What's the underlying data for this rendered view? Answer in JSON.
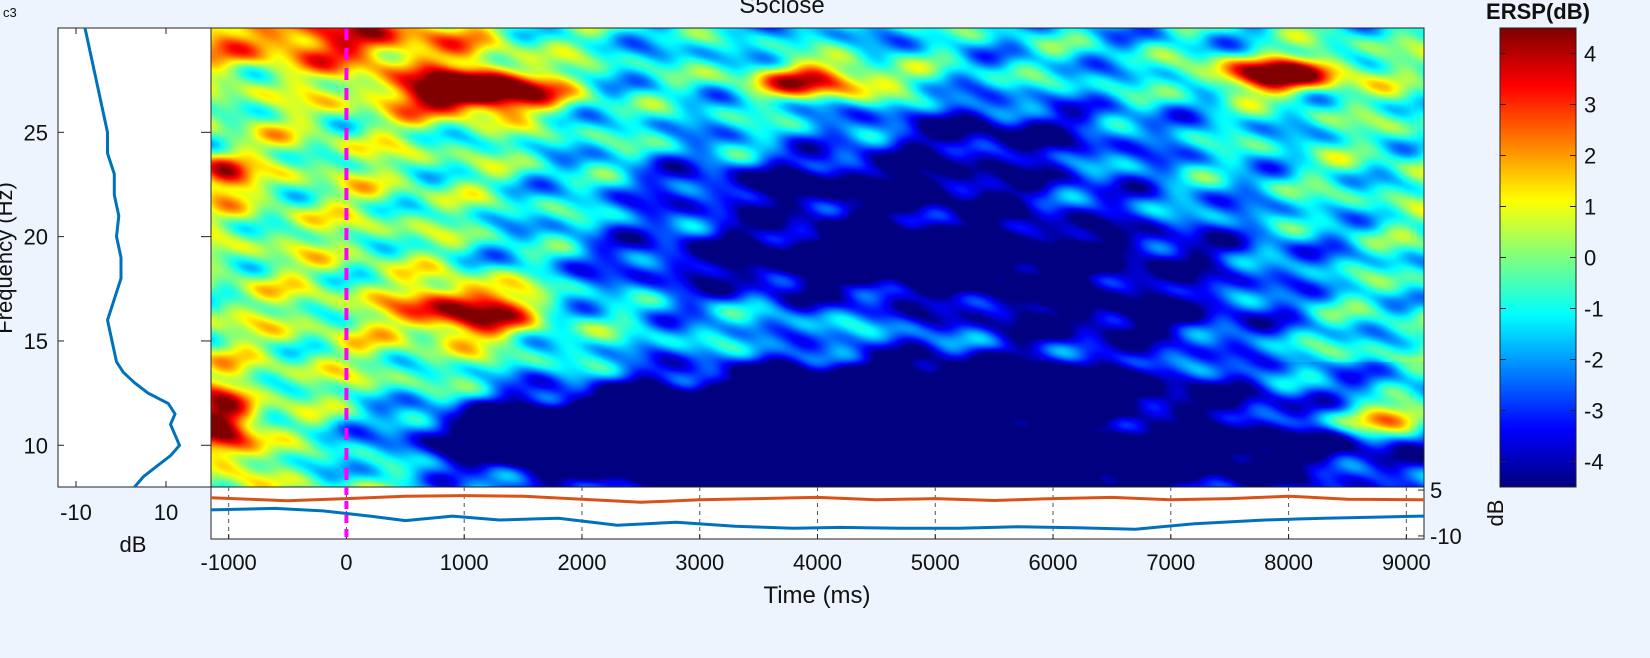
{
  "corner_label": "c3",
  "chart_data": {
    "type": "heatmap",
    "title": "S5close",
    "xlabel": "Time (ms)",
    "ylabel": "Frequency (Hz)",
    "xlim": [
      -1150,
      9150
    ],
    "ylim": [
      8,
      30
    ],
    "x_ticks": [
      -1000,
      0,
      1000,
      2000,
      3000,
      4000,
      5000,
      6000,
      7000,
      8000,
      9000
    ],
    "y_ticks": [
      10,
      15,
      20,
      25
    ],
    "event_line_ms": 0,
    "grid": true,
    "colormap": "jet",
    "colorbar": {
      "title": "ERSP(dB)",
      "ylabel": "dB",
      "range": [
        -4.5,
        4.5
      ],
      "ticks": [
        -4,
        -3,
        -2,
        -1,
        0,
        1,
        2,
        3,
        4
      ]
    },
    "erds_blobs": [
      {
        "t": 1100,
        "f": 27.0,
        "st": 450,
        "sf": 0.7,
        "a": 8.0
      },
      {
        "t": 1050,
        "f": 16.5,
        "st": 380,
        "sf": 0.9,
        "a": 5.2
      },
      {
        "t": 4000,
        "f": 27.5,
        "st": 450,
        "sf": 0.6,
        "a": 5.0
      },
      {
        "t": 7900,
        "f": 27.8,
        "st": 400,
        "sf": 0.6,
        "a": 6.5
      },
      {
        "t": 8800,
        "f": 11.3,
        "st": 350,
        "sf": 0.5,
        "a": 5.5
      },
      {
        "t": 6500,
        "f": 11.0,
        "st": 800,
        "sf": 0.5,
        "a": 3.5
      },
      {
        "t": -1050,
        "f": 11.0,
        "st": 200,
        "sf": 1.2,
        "a": 5.5
      },
      {
        "t": -1050,
        "f": 23.0,
        "st": 150,
        "sf": 0.6,
        "a": 3.5
      },
      {
        "t": 0,
        "f": 29.5,
        "st": 900,
        "sf": 1.0,
        "a": 3.0
      },
      {
        "t": 5000,
        "f": 10.0,
        "st": 2500,
        "sf": 1.8,
        "a": -8.0
      },
      {
        "t": 2000,
        "f": 10.5,
        "st": 900,
        "sf": 1.2,
        "a": -5.0
      },
      {
        "t": 5000,
        "f": 13.0,
        "st": 1400,
        "sf": 1.0,
        "a": -4.0
      },
      {
        "t": 5000,
        "f": 19.0,
        "st": 1800,
        "sf": 1.5,
        "a": -5.0
      },
      {
        "t": 4500,
        "f": 22.5,
        "st": 1300,
        "sf": 1.0,
        "a": -3.5
      },
      {
        "t": 5500,
        "f": 25.0,
        "st": 800,
        "sf": 1.0,
        "a": -3.0
      },
      {
        "t": 6500,
        "f": 16.0,
        "st": 1000,
        "sf": 1.0,
        "a": -3.0
      }
    ],
    "marginal_spectrum": {
      "xlabel": "dB",
      "xlim": [
        -14,
        20
      ],
      "x_ticks": [
        -10,
        10
      ],
      "freq": [
        8,
        8.5,
        9,
        9.5,
        10,
        10.5,
        11,
        11.5,
        12,
        12.5,
        13,
        13.5,
        14,
        15,
        16,
        17,
        18,
        19,
        20,
        21,
        22,
        23,
        24,
        25,
        26,
        27,
        28,
        29,
        30
      ],
      "db": [
        3,
        5,
        8,
        11,
        13,
        12,
        11,
        12,
        10.5,
        6,
        3,
        0.5,
        -1,
        -2,
        -3,
        -1.5,
        0,
        0,
        -1,
        -0.5,
        -1.5,
        -1.5,
        -3,
        -3,
        -4,
        -5,
        -6,
        -7,
        -8
      ]
    },
    "erp_envelope": {
      "ylabel": "dB",
      "ylim": [
        -11,
        6
      ],
      "y_ticks": [
        5,
        -10
      ],
      "series": [
        {
          "color": "#d95319",
          "time": [
            -1150,
            -500,
            0,
            500,
            1000,
            1500,
            2000,
            2500,
            3000,
            3500,
            4000,
            4500,
            5000,
            5500,
            6000,
            6500,
            7000,
            7500,
            8000,
            8500,
            9150
          ],
          "db": [
            2.5,
            1.5,
            2.2,
            3.0,
            3.2,
            3.0,
            2.0,
            1.0,
            1.8,
            2.2,
            2.6,
            1.8,
            2.2,
            1.6,
            2.2,
            2.6,
            1.8,
            2.2,
            3.0,
            2.0,
            1.8
          ]
        },
        {
          "color": "#0072bd",
          "time": [
            -1150,
            -600,
            -200,
            200,
            500,
            900,
            1300,
            1800,
            2300,
            2800,
            3300,
            3800,
            4200,
            4700,
            5200,
            5700,
            6200,
            6700,
            7200,
            7800,
            8300,
            8800,
            9150
          ],
          "db": [
            -1.5,
            -1.0,
            -1.8,
            -3.5,
            -5.0,
            -3.5,
            -4.8,
            -4.2,
            -6.5,
            -5.5,
            -6.8,
            -7.5,
            -7.2,
            -7.5,
            -7.5,
            -7.0,
            -7.3,
            -7.8,
            -6.0,
            -4.8,
            -4.2,
            -3.8,
            -3.5
          ]
        }
      ]
    }
  }
}
